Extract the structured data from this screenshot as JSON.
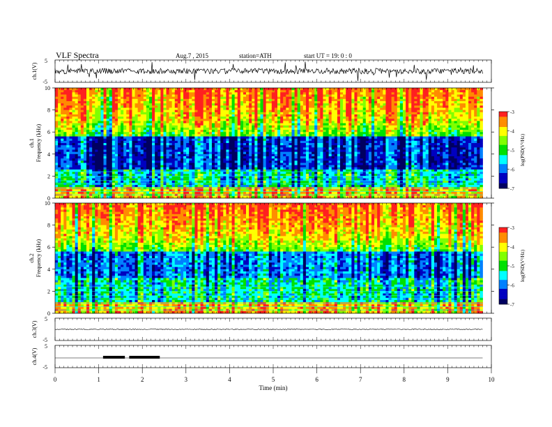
{
  "header": {
    "title": "VLF  Spectra",
    "date": "Aug.7  , 2015",
    "station": "station=ATH",
    "start": "start  UT  =    19: 0  : 0"
  },
  "colorbar": {
    "label": "log(PSD(V²/Hz)",
    "ticks": [
      "-3",
      "-4",
      "-5",
      "-6",
      "-7"
    ],
    "colors": [
      "#ff2020",
      "#ff8c00",
      "#ffff00",
      "#80ff00",
      "#00e000",
      "#00ffff",
      "#0080ff",
      "#0000c0",
      "#000060"
    ]
  },
  "chart_data": [
    {
      "type": "line",
      "panel": "ch1-waveform",
      "ylabel": "ch.1(V)",
      "ylim": [
        -5,
        5
      ],
      "yticks": [
        "5",
        "-5"
      ],
      "xlim": [
        0,
        10
      ],
      "description_mean": 0.0
    },
    {
      "type": "heatmap",
      "panel": "ch1-spectrogram",
      "channel_label": "ch.1",
      "ylabel": "Frequency  (kHz)",
      "ylim": [
        0,
        10
      ],
      "yticks": [
        "0",
        "2",
        "4",
        "6",
        "8",
        "10"
      ],
      "xlim": [
        0,
        9.8
      ],
      "colorscale_range": [
        -7,
        -3
      ]
    },
    {
      "type": "heatmap",
      "panel": "ch2-spectrogram",
      "channel_label": "ch.2",
      "ylabel": "Frequency  (kHz)",
      "ylim": [
        0,
        10
      ],
      "yticks": [
        "0",
        "2",
        "4",
        "6",
        "8",
        "10"
      ],
      "xlim": [
        0,
        9.8
      ],
      "colorscale_range": [
        -7,
        -3
      ]
    },
    {
      "type": "line",
      "panel": "ch3-waveform",
      "ylabel": "ch.3(V)",
      "ylim": [
        -5,
        5
      ],
      "yticks": [
        "5",
        "-5"
      ],
      "level": 0.0
    },
    {
      "type": "line",
      "panel": "ch4-waveform",
      "ylabel": "ch.4(V)",
      "ylim": [
        -5,
        5
      ],
      "yticks": [
        "5",
        "-5"
      ],
      "level": 0.0,
      "bursts": [
        [
          1.1,
          1.6
        ],
        [
          1.7,
          2.4
        ]
      ]
    }
  ],
  "xaxis": {
    "label": "Time  (min)",
    "ticks": [
      "0",
      "1",
      "2",
      "3",
      "4",
      "5",
      "6",
      "7",
      "8",
      "9",
      "10"
    ],
    "range": [
      0,
      10
    ]
  }
}
